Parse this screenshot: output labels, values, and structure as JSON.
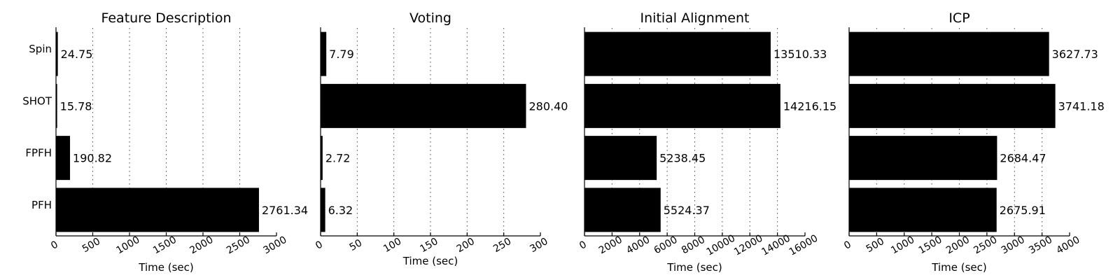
{
  "chart_data": [
    {
      "type": "bar",
      "orientation": "horizontal",
      "title": "Feature Description",
      "xlabel": "Time (sec)",
      "ylabel": "",
      "categories": [
        "Spin",
        "SHOT",
        "FPFH",
        "PFH"
      ],
      "values": [
        24.75,
        15.78,
        190.82,
        2761.34
      ],
      "value_labels": [
        "24.75",
        "15.78",
        "190.82",
        "2761.34"
      ],
      "xlim": [
        0,
        3000
      ],
      "ticks": [
        0,
        500,
        1000,
        1500,
        2000,
        2500,
        3000
      ],
      "tick_labels": [
        "0",
        "500",
        "1000",
        "1500",
        "2000",
        "2500",
        "3000"
      ],
      "grid": "vertical dotted",
      "bar_color": "#000000"
    },
    {
      "type": "bar",
      "orientation": "horizontal",
      "title": "Voting",
      "xlabel": "Time (sec)",
      "ylabel": "",
      "categories": [
        "Spin",
        "SHOT",
        "FPFH",
        "PFH"
      ],
      "values": [
        7.79,
        280.4,
        2.72,
        6.32
      ],
      "value_labels": [
        "7.79",
        "280.40",
        "2.72",
        "6.32"
      ],
      "xlim": [
        0,
        300
      ],
      "ticks": [
        0,
        50,
        100,
        150,
        200,
        250,
        300
      ],
      "tick_labels": [
        "0",
        "50",
        "100",
        "150",
        "200",
        "250",
        "300"
      ],
      "grid": "vertical dotted",
      "bar_color": "#000000"
    },
    {
      "type": "bar",
      "orientation": "horizontal",
      "title": "Initial Alignment",
      "xlabel": "Time (sec)",
      "ylabel": "",
      "categories": [
        "Spin",
        "SHOT",
        "FPFH",
        "PFH"
      ],
      "values": [
        13510.33,
        14216.15,
        5238.45,
        5524.37
      ],
      "value_labels": [
        "13510.33",
        "14216.15",
        "5238.45",
        "5524.37"
      ],
      "xlim": [
        0,
        16000
      ],
      "ticks": [
        0,
        2000,
        4000,
        6000,
        8000,
        10000,
        12000,
        14000,
        16000
      ],
      "tick_labels": [
        "0",
        "2000",
        "4000",
        "6000",
        "8000",
        "10000",
        "12000",
        "14000",
        "16000"
      ],
      "grid": "vertical dotted",
      "bar_color": "#000000"
    },
    {
      "type": "bar",
      "orientation": "horizontal",
      "title": "ICP",
      "xlabel": "Time (sec)",
      "ylabel": "",
      "categories": [
        "Spin",
        "SHOT",
        "FPFH",
        "PFH"
      ],
      "values": [
        3627.73,
        3741.18,
        2684.47,
        2675.91
      ],
      "value_labels": [
        "3627.73",
        "3741.18",
        "2684.47",
        "2675.91"
      ],
      "xlim": [
        0,
        4000
      ],
      "ticks": [
        0,
        500,
        1000,
        1500,
        2000,
        2500,
        3000,
        3500,
        4000
      ],
      "tick_labels": [
        "0",
        "500",
        "1000",
        "1500",
        "2000",
        "2500",
        "3000",
        "3500",
        "4000"
      ],
      "grid": "vertical dotted",
      "bar_color": "#000000"
    }
  ]
}
